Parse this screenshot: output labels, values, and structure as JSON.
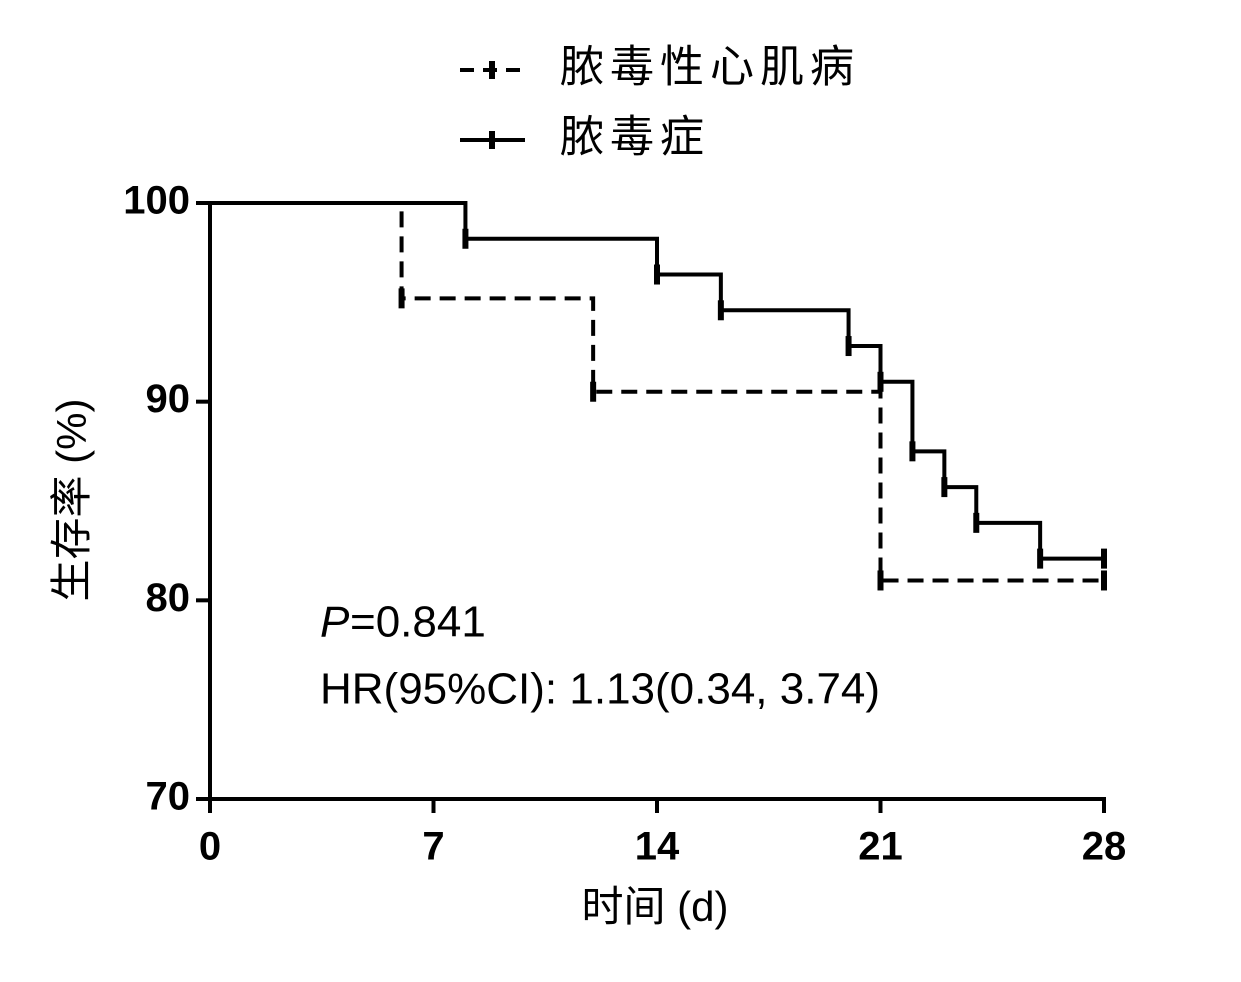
{
  "chart_data": {
    "type": "step",
    "series": [
      {
        "name": "脓毒性心肌病",
        "color": "#000000",
        "dash": true,
        "x": [
          0,
          6,
          12,
          21,
          28
        ],
        "values": [
          100,
          95.2,
          90.5,
          81.0,
          81.0
        ]
      },
      {
        "name": "脓毒症",
        "color": "#000000",
        "dash": false,
        "x": [
          0,
          8,
          14,
          16,
          20,
          21,
          22,
          23,
          24,
          26,
          28
        ],
        "values": [
          100,
          98.2,
          96.4,
          94.6,
          92.8,
          91.0,
          87.5,
          85.7,
          83.9,
          82.1,
          82.1
        ]
      }
    ],
    "x_label": "时间 (d)",
    "y_label": "生存率 (%)",
    "xlim": [
      0,
      28
    ],
    "xticks": [
      0,
      7,
      14,
      21,
      28
    ],
    "ylim": [
      70,
      100
    ],
    "yticks": [
      70,
      80,
      90,
      100
    ],
    "annotations": [
      {
        "italic": "P",
        "text": "=0.841"
      },
      {
        "text": "HR(95%CI): 1.13(0.34, 3.74)"
      }
    ]
  }
}
